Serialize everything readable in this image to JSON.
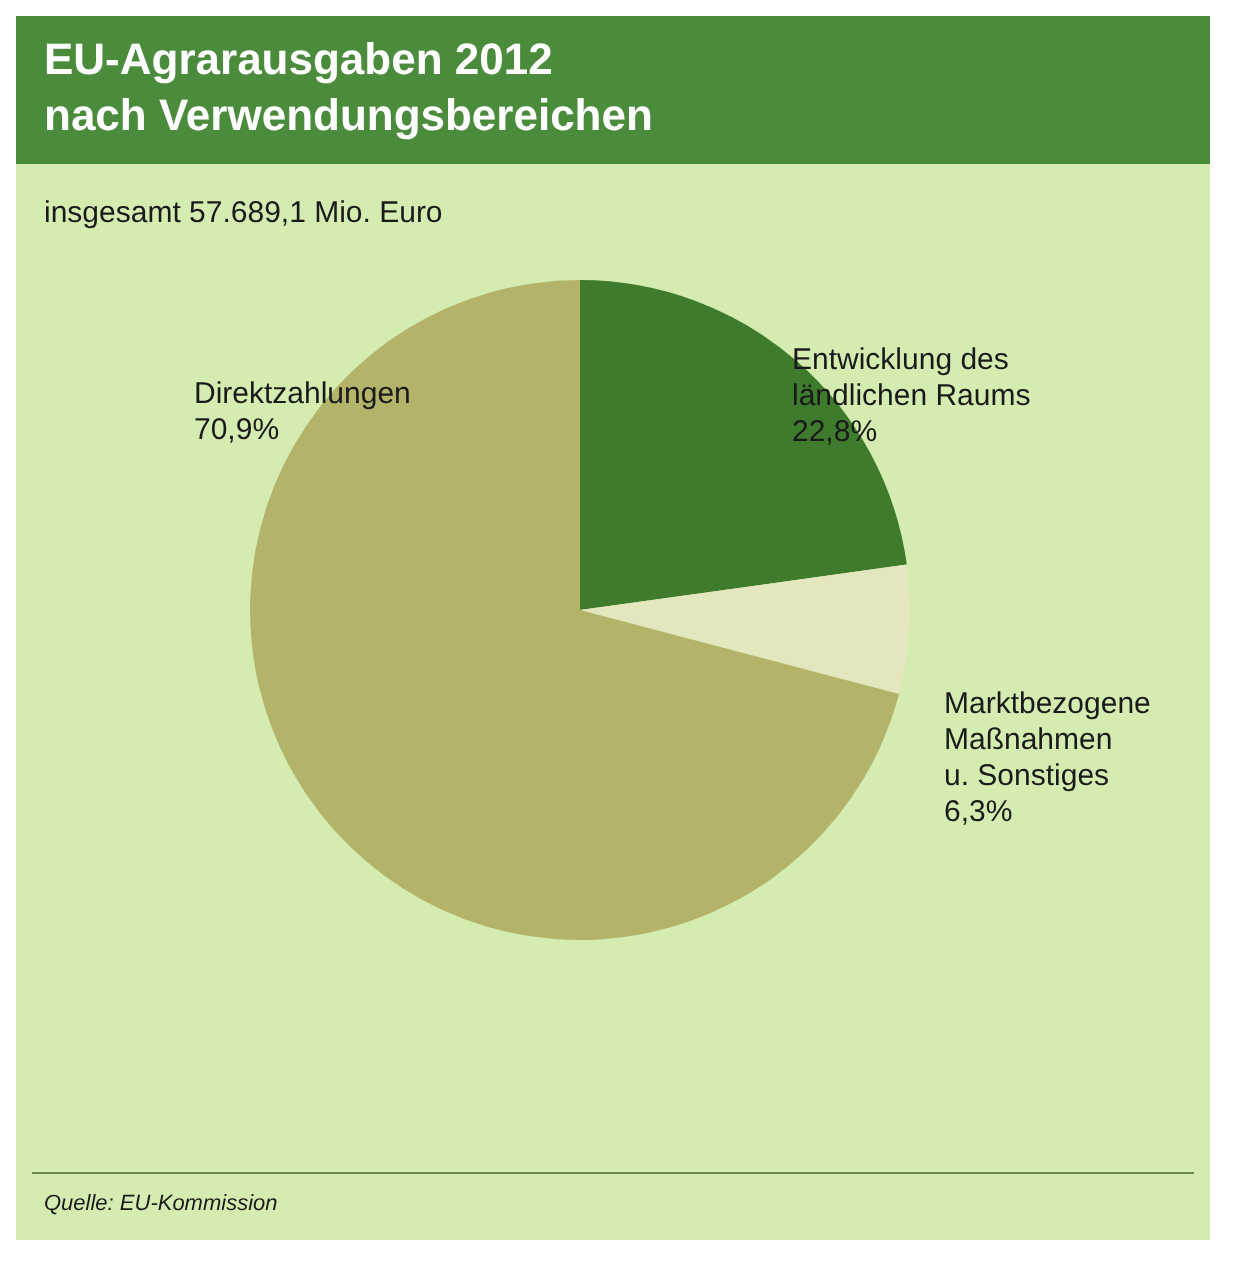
{
  "chart_data": {
    "type": "pie",
    "title": "EU-Agrarausgaben 2012\nnach Verwendungsbereichen",
    "subtitle": "insgesamt 57.689,1 Mio. Euro",
    "categories": [
      "Entwicklung des\nländlichen Raums",
      "Marktbezogene\nMaßnahmen\nu. Sonstiges",
      "Direktzahlungen"
    ],
    "values": [
      22.8,
      6.3,
      70.9
    ],
    "colors": [
      "#3e7b2c",
      "#e4e6bd",
      "#b3b46a"
    ],
    "value_labels": [
      "22,8%",
      "6,3%",
      "70,9%"
    ],
    "legend": false,
    "annotations": [
      "Quelle: EU-Kommission"
    ]
  }
}
